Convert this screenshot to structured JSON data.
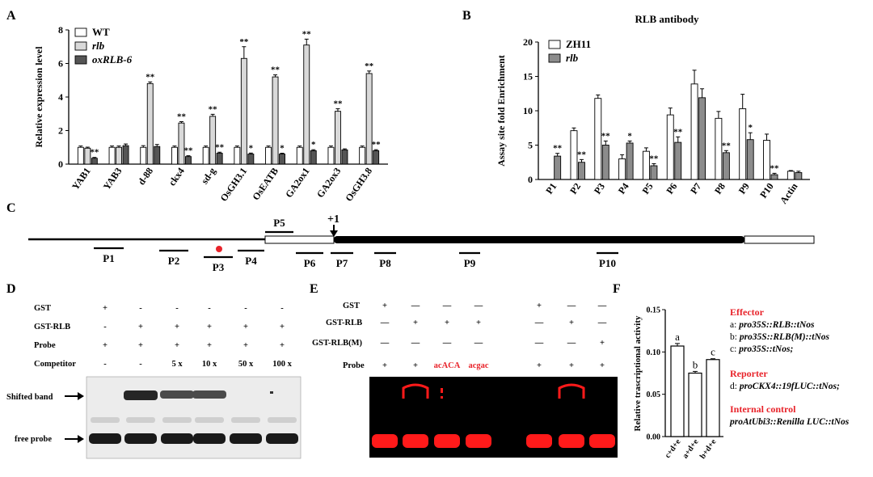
{
  "panels": {
    "A": "A",
    "B": "B",
    "C": "C",
    "D": "D",
    "E": "E",
    "F": "F"
  },
  "chart_data": [
    {
      "id": "A",
      "type": "bar",
      "ylabel": "Relative expression level",
      "ylim": [
        0,
        8
      ],
      "yticks": [
        "0",
        "2",
        "4",
        "6",
        "8"
      ],
      "categories": [
        "YAB1",
        "YAB3",
        "d-88",
        "ckx4",
        "sd-g",
        "OsGH3.1",
        "OsEATB",
        "GA2ox1",
        "GA2ox3",
        "OsGH3.8"
      ],
      "series": [
        {
          "name": "WT",
          "color": "#ffffff",
          "values": [
            1.0,
            1.0,
            1.0,
            1.0,
            1.0,
            1.0,
            1.0,
            1.0,
            1.0,
            1.0
          ],
          "errors": [
            0.08,
            0.08,
            0.1,
            0.08,
            0.08,
            0.08,
            0.08,
            0.08,
            0.08,
            0.08
          ],
          "sig": [
            "",
            "",
            "",
            "",
            "",
            "",
            "",
            "",
            "",
            ""
          ]
        },
        {
          "name": "rlb",
          "color": "#d9d9d9",
          "values": [
            0.95,
            1.0,
            4.8,
            2.45,
            2.85,
            6.3,
            5.2,
            7.1,
            3.15,
            5.4
          ],
          "errors": [
            0.06,
            0.08,
            0.1,
            0.08,
            0.12,
            0.7,
            0.12,
            0.35,
            0.15,
            0.15
          ],
          "sig": [
            "",
            "",
            "**",
            "**",
            "**",
            "**",
            "**",
            "**",
            "**",
            "**"
          ]
        },
        {
          "name": "oxRLB-6",
          "color": "#555555",
          "values": [
            0.35,
            1.1,
            1.05,
            0.45,
            0.65,
            0.6,
            0.6,
            0.8,
            0.85,
            0.8
          ],
          "errors": [
            0.05,
            0.1,
            0.12,
            0.05,
            0.06,
            0.06,
            0.05,
            0.06,
            0.06,
            0.06
          ],
          "sig": [
            "**",
            "",
            "",
            "**",
            "**",
            "*",
            "*",
            "*",
            "",
            "**"
          ]
        }
      ],
      "legend": "top-left"
    },
    {
      "id": "B",
      "type": "bar",
      "title": "RLB antibody",
      "ylabel": "Assay site fold Enrichment",
      "ylim": [
        0,
        20
      ],
      "yticks": [
        "0",
        "5",
        "10",
        "15",
        "20"
      ],
      "categories": [
        "P1",
        "P2",
        "P3",
        "P4",
        "P5",
        "P6",
        "P7",
        "P8",
        "P9",
        "P10",
        "Actin"
      ],
      "series": [
        {
          "name": "ZH11",
          "color": "#ffffff",
          "values": [
            0,
            7.1,
            11.8,
            3.0,
            4.1,
            9.4,
            13.9,
            8.9,
            10.3,
            5.7,
            1.2
          ],
          "errors": [
            0,
            0.4,
            0.5,
            0.6,
            0.5,
            1.0,
            2.0,
            1.0,
            2.1,
            0.9,
            0.1
          ],
          "sig": [
            "",
            "",
            "",
            "",
            "",
            "",
            "",
            "",
            "",
            "",
            ""
          ]
        },
        {
          "name": "rlb",
          "color": "#8c8c8c",
          "values": [
            3.4,
            2.5,
            5.0,
            5.3,
            2.0,
            5.4,
            11.9,
            3.9,
            5.8,
            0.7,
            1.0
          ],
          "errors": [
            0.4,
            0.4,
            0.6,
            0.3,
            0.3,
            0.8,
            1.3,
            0.3,
            1.0,
            0.2,
            0.2
          ],
          "sig": [
            "**",
            "**",
            "**",
            "*",
            "**",
            "**",
            "",
            "**",
            "*",
            "**",
            ""
          ]
        }
      ],
      "legend": "top-left"
    },
    {
      "id": "F",
      "type": "bar",
      "ylabel": "Relative trascriptional activity",
      "ylim": [
        0,
        0.15
      ],
      "yticks": [
        "0.00",
        "0.05",
        "0.10",
        "0.15"
      ],
      "categories": [
        "c+d+e",
        "a+d+e",
        "b+d+e"
      ],
      "values": [
        0.107,
        0.075,
        0.091
      ],
      "errors": [
        0.003,
        0.002,
        0.001
      ],
      "letters": [
        "a",
        "b",
        "c"
      ]
    }
  ],
  "diagram_c": {
    "tss": "+1",
    "primers": [
      "P1",
      "P2",
      "P3",
      "P4",
      "P5",
      "P6",
      "P7",
      "P8",
      "P9",
      "P10"
    ]
  },
  "gel_d": {
    "rows": [
      {
        "label": "GST",
        "cells": [
          "+",
          "-",
          "-",
          "-",
          "-",
          "-"
        ]
      },
      {
        "label": "GST-RLB",
        "cells": [
          "-",
          "+",
          "+",
          "+",
          "+",
          "+"
        ]
      },
      {
        "label": "Probe",
        "cells": [
          "+",
          "+",
          "+",
          "+",
          "+",
          "+"
        ]
      },
      {
        "label": "Competitor",
        "cells": [
          "-",
          "-",
          "5 x",
          "10 x",
          "50 x",
          "100 x"
        ]
      }
    ],
    "shifted_label": "Shifted band",
    "free_label": "free probe"
  },
  "gel_e": {
    "rows": [
      {
        "label": "GST",
        "cells": [
          "+",
          "—",
          "—",
          "—",
          "+",
          "—",
          "—"
        ]
      },
      {
        "label": "GST-RLB",
        "cells": [
          "—",
          "+",
          "+",
          "+",
          "—",
          "+",
          "—"
        ]
      },
      {
        "label": "GST-RLB(M)",
        "cells": [
          "—",
          "—",
          "—",
          "—",
          "—",
          "—",
          "+"
        ]
      },
      {
        "label": "Probe",
        "cells": [
          "+",
          "+",
          "acACA",
          "acgac",
          "+",
          "+",
          "+"
        ]
      }
    ]
  },
  "legend_f": {
    "effector_title": "Effector",
    "effector_a_prefix": "a: ",
    "effector_a": "pro35S::RLB::tNos",
    "effector_b_prefix": "b: ",
    "effector_b": "pro35S::RLB(M)::tNos",
    "effector_c_prefix": "c: ",
    "effector_c": "pro35S::tNos;",
    "reporter_title": "Reporter",
    "reporter_d_prefix": "d: ",
    "reporter_d": "proCKX4::19fLUC::tNos;",
    "internal_title": "Internal control",
    "internal_text": "proAtUbi3::Renilla LUC::tNos"
  },
  "colors": {
    "accent_red": "#e8232a",
    "gel_red": "#ff1a1a",
    "gel_bg": "#000000"
  }
}
